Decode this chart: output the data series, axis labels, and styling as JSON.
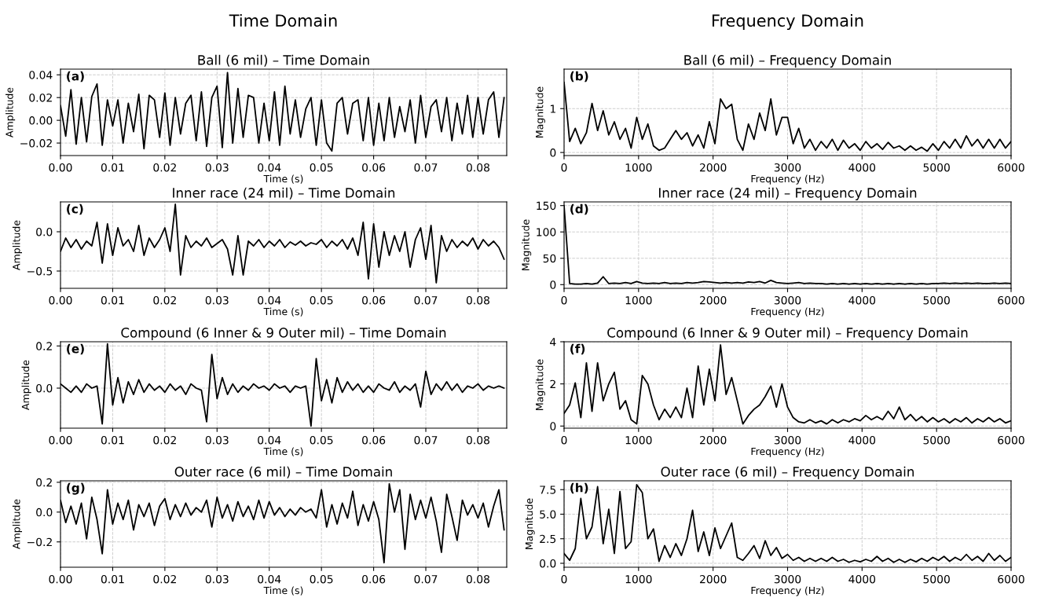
{
  "chart_data": [
    {
      "type": "line",
      "title": "Ball (6 mil) – Time Domain",
      "xlabel": "Time (s)",
      "ylabel": "Amplitude",
      "annotations": [
        "(a)",
        "Time Domain"
      ],
      "grid": true,
      "x": [
        0,
        0.001,
        0.002,
        0.003,
        0.004,
        0.005,
        0.006,
        0.007,
        0.008,
        0.009,
        0.01,
        0.011,
        0.012,
        0.013,
        0.014,
        0.015,
        0.016,
        0.017,
        0.018,
        0.019,
        0.02,
        0.021,
        0.022,
        0.023,
        0.024,
        0.025,
        0.026,
        0.027,
        0.028,
        0.029,
        0.03,
        0.031,
        0.032,
        0.033,
        0.034,
        0.035,
        0.036,
        0.037,
        0.038,
        0.039,
        0.04,
        0.041,
        0.042,
        0.043,
        0.044,
        0.045,
        0.046,
        0.047,
        0.048,
        0.049,
        0.05,
        0.051,
        0.052,
        0.053,
        0.054,
        0.055,
        0.056,
        0.057,
        0.058,
        0.059,
        0.06,
        0.061,
        0.062,
        0.063,
        0.064,
        0.065,
        0.066,
        0.067,
        0.068,
        0.069,
        0.07,
        0.071,
        0.072,
        0.073,
        0.074,
        0.075,
        0.076,
        0.077,
        0.078,
        0.079,
        0.08,
        0.081,
        0.082,
        0.083,
        0.084,
        0.085
      ],
      "series": [
        {
          "color": "#000000",
          "values": [
            0.013,
            -0.014,
            0.027,
            -0.021,
            0.02,
            -0.019,
            0.021,
            0.032,
            -0.022,
            0.018,
            -0.005,
            0.018,
            -0.02,
            0.015,
            -0.01,
            0.023,
            -0.025,
            0.022,
            0.018,
            -0.015,
            0.024,
            -0.022,
            0.02,
            -0.012,
            0.015,
            0.022,
            -0.018,
            0.025,
            -0.023,
            0.02,
            0.03,
            -0.024,
            0.042,
            -0.02,
            0.028,
            -0.015,
            0.022,
            0.02,
            -0.02,
            0.015,
            -0.018,
            0.025,
            -0.022,
            0.03,
            -0.012,
            0.018,
            -0.015,
            0.01,
            0.02,
            -0.022,
            0.018,
            -0.02,
            -0.027,
            0.015,
            0.02,
            -0.012,
            0.015,
            0.018,
            -0.018,
            0.02,
            -0.022,
            0.015,
            -0.018,
            0.02,
            -0.015,
            0.012,
            -0.01,
            0.018,
            -0.02,
            0.022,
            -0.015,
            0.012,
            0.018,
            -0.01,
            0.02,
            -0.018,
            0.015,
            -0.012,
            0.022,
            -0.015,
            0.02,
            -0.012,
            0.018,
            0.025,
            -0.015,
            0.02
          ]
        }
      ],
      "xlim": [
        0,
        0.0855
      ],
      "ylim": [
        -0.031,
        0.045
      ],
      "xticks": [
        {
          "value": 0,
          "label": "0.00"
        },
        {
          "value": 0.01,
          "label": "0.01"
        },
        {
          "value": 0.02,
          "label": "0.02"
        },
        {
          "value": 0.03,
          "label": "0.03"
        },
        {
          "value": 0.04,
          "label": "0.04"
        },
        {
          "value": 0.05,
          "label": "0.05"
        },
        {
          "value": 0.06,
          "label": "0.06"
        },
        {
          "value": 0.07,
          "label": "0.07"
        },
        {
          "value": 0.08,
          "label": "0.08"
        }
      ],
      "yticks": [
        {
          "value": -0.02,
          "label": "−0.02"
        },
        {
          "value": 0,
          "label": "0.00"
        },
        {
          "value": 0.02,
          "label": "0.02"
        },
        {
          "value": 0.04,
          "label": "0.04"
        }
      ]
    },
    {
      "type": "line",
      "title": "Ball (6 mil) – Frequency Domain",
      "xlabel": "Frequency (Hz)",
      "ylabel": "Magnitude",
      "annotations": [
        "(b)",
        "Frequency Domain"
      ],
      "grid": true,
      "x": [
        0,
        75,
        150,
        225,
        300,
        375,
        450,
        525,
        600,
        675,
        750,
        825,
        900,
        975,
        1050,
        1125,
        1200,
        1275,
        1350,
        1425,
        1500,
        1575,
        1650,
        1725,
        1800,
        1875,
        1950,
        2025,
        2100,
        2175,
        2250,
        2325,
        2400,
        2475,
        2550,
        2625,
        2700,
        2775,
        2850,
        2925,
        3000,
        3075,
        3150,
        3225,
        3300,
        3375,
        3450,
        3525,
        3600,
        3675,
        3750,
        3825,
        3900,
        3975,
        4050,
        4125,
        4200,
        4275,
        4350,
        4425,
        4500,
        4575,
        4650,
        4725,
        4800,
        4875,
        4950,
        5025,
        5100,
        5175,
        5250,
        5325,
        5400,
        5475,
        5550,
        5625,
        5700,
        5775,
        5850,
        5925,
        6000
      ],
      "series": [
        {
          "color": "#000000",
          "values": [
            1.6,
            0.25,
            0.55,
            0.2,
            0.45,
            1.12,
            0.5,
            0.95,
            0.4,
            0.7,
            0.3,
            0.55,
            0.1,
            0.8,
            0.3,
            0.65,
            0.15,
            0.05,
            0.1,
            0.3,
            0.5,
            0.3,
            0.45,
            0.15,
            0.4,
            0.1,
            0.7,
            0.2,
            1.22,
            1.0,
            1.1,
            0.3,
            0.05,
            0.65,
            0.3,
            0.9,
            0.5,
            1.22,
            0.4,
            0.8,
            0.8,
            0.2,
            0.55,
            0.1,
            0.3,
            0.05,
            0.25,
            0.1,
            0.3,
            0.05,
            0.28,
            0.1,
            0.2,
            0.05,
            0.25,
            0.1,
            0.2,
            0.07,
            0.23,
            0.1,
            0.15,
            0.05,
            0.15,
            0.05,
            0.12,
            0.03,
            0.2,
            0.05,
            0.25,
            0.1,
            0.3,
            0.1,
            0.38,
            0.15,
            0.3,
            0.1,
            0.3,
            0.1,
            0.3,
            0.1,
            0.25
          ]
        }
      ],
      "xlim": [
        0,
        6000
      ],
      "ylim": [
        -0.07,
        1.9
      ],
      "xticks": [
        0,
        1000,
        2000,
        3000,
        4000,
        5000,
        6000
      ],
      "yticks": [
        0,
        1
      ]
    },
    {
      "type": "line",
      "title": "Inner race (24 mil) – Time Domain",
      "xlabel": "Time (s)",
      "ylabel": "Amplitude",
      "annotations": [
        "(c)"
      ],
      "grid": true,
      "x": [
        0,
        0.001,
        0.002,
        0.003,
        0.004,
        0.005,
        0.006,
        0.007,
        0.008,
        0.009,
        0.01,
        0.011,
        0.012,
        0.013,
        0.014,
        0.015,
        0.016,
        0.017,
        0.018,
        0.019,
        0.02,
        0.021,
        0.022,
        0.023,
        0.024,
        0.025,
        0.026,
        0.027,
        0.028,
        0.029,
        0.03,
        0.031,
        0.032,
        0.033,
        0.034,
        0.035,
        0.036,
        0.037,
        0.038,
        0.039,
        0.04,
        0.041,
        0.042,
        0.043,
        0.044,
        0.045,
        0.046,
        0.047,
        0.048,
        0.049,
        0.05,
        0.051,
        0.052,
        0.053,
        0.054,
        0.055,
        0.056,
        0.057,
        0.058,
        0.059,
        0.06,
        0.061,
        0.062,
        0.063,
        0.064,
        0.065,
        0.066,
        0.067,
        0.068,
        0.069,
        0.07,
        0.071,
        0.072,
        0.073,
        0.074,
        0.075,
        0.076,
        0.077,
        0.078,
        0.079,
        0.08,
        0.081,
        0.082,
        0.083,
        0.084,
        0.085
      ],
      "series": [
        {
          "color": "#000000",
          "values": [
            -0.25,
            -0.08,
            -0.2,
            -0.1,
            -0.22,
            -0.12,
            -0.18,
            0.12,
            -0.4,
            0.1,
            -0.3,
            0.05,
            -0.18,
            -0.1,
            -0.25,
            0.08,
            -0.3,
            -0.08,
            -0.2,
            -0.1,
            0.05,
            -0.25,
            0.35,
            -0.55,
            -0.05,
            -0.2,
            -0.12,
            -0.18,
            -0.08,
            -0.2,
            -0.15,
            -0.1,
            -0.22,
            -0.55,
            -0.05,
            -0.55,
            -0.12,
            -0.18,
            -0.1,
            -0.2,
            -0.12,
            -0.18,
            -0.1,
            -0.2,
            -0.13,
            -0.17,
            -0.12,
            -0.18,
            -0.14,
            -0.16,
            -0.1,
            -0.2,
            -0.12,
            -0.18,
            -0.1,
            -0.22,
            -0.08,
            -0.3,
            0.12,
            -0.6,
            0.1,
            -0.45,
            0.0,
            -0.3,
            -0.05,
            -0.25,
            0.0,
            -0.45,
            -0.1,
            0.05,
            -0.35,
            0.08,
            -0.65,
            -0.05,
            -0.25,
            -0.1,
            -0.2,
            -0.12,
            -0.18,
            -0.08,
            -0.22,
            -0.1,
            -0.18,
            -0.12,
            -0.2,
            -0.35
          ]
        }
      ],
      "xlim": [
        0,
        0.0855
      ],
      "ylim": [
        -0.72,
        0.38
      ],
      "xticks": [
        {
          "value": 0,
          "label": "0.00"
        },
        {
          "value": 0.01,
          "label": "0.01"
        },
        {
          "value": 0.02,
          "label": "0.02"
        },
        {
          "value": 0.03,
          "label": "0.03"
        },
        {
          "value": 0.04,
          "label": "0.04"
        },
        {
          "value": 0.05,
          "label": "0.05"
        },
        {
          "value": 0.06,
          "label": "0.06"
        },
        {
          "value": 0.07,
          "label": "0.07"
        },
        {
          "value": 0.08,
          "label": "0.08"
        }
      ],
      "yticks": [
        {
          "value": -0.5,
          "label": "−0.5"
        },
        {
          "value": 0,
          "label": "0.0"
        }
      ]
    },
    {
      "type": "line",
      "title": "Inner race (24 mil) – Frequency Domain",
      "xlabel": "Frequency (Hz)",
      "ylabel": "Magnitude",
      "annotations": [
        "(d)"
      ],
      "grid": true,
      "x": [
        0,
        75,
        150,
        225,
        300,
        375,
        450,
        525,
        600,
        675,
        750,
        825,
        900,
        975,
        1050,
        1125,
        1200,
        1275,
        1350,
        1425,
        1500,
        1575,
        1650,
        1725,
        1800,
        1875,
        1950,
        2025,
        2100,
        2175,
        2250,
        2325,
        2400,
        2475,
        2550,
        2625,
        2700,
        2775,
        2850,
        2925,
        3000,
        3075,
        3150,
        3225,
        3300,
        3375,
        3450,
        3525,
        3600,
        3675,
        3750,
        3825,
        3900,
        3975,
        4050,
        4125,
        4200,
        4275,
        4350,
        4425,
        4500,
        4575,
        4650,
        4725,
        4800,
        4875,
        4950,
        5025,
        5100,
        5175,
        5250,
        5325,
        5400,
        5475,
        5550,
        5625,
        5700,
        5775,
        5850,
        5925,
        6000
      ],
      "series": [
        {
          "color": "#000000",
          "values": [
            150,
            2,
            1,
            1,
            2,
            1,
            3,
            15,
            2,
            3,
            2,
            4,
            2,
            6,
            3,
            2,
            3,
            2,
            4,
            2,
            3,
            2,
            4,
            3,
            4,
            6,
            5,
            4,
            3,
            4,
            3,
            4,
            3,
            5,
            4,
            6,
            3,
            8,
            4,
            3,
            2,
            3,
            4,
            2,
            3,
            2,
            2,
            1,
            2,
            1,
            2,
            1,
            2,
            1,
            2,
            1,
            2,
            1,
            2,
            1,
            2,
            1,
            2,
            1,
            2,
            1,
            2,
            2,
            3,
            2,
            3,
            2,
            3,
            2,
            3,
            2,
            2,
            3,
            2,
            3,
            2
          ]
        }
      ],
      "xlim": [
        0,
        6000
      ],
      "ylim": [
        -7,
        157
      ],
      "xticks": [
        0,
        1000,
        2000,
        3000,
        4000,
        5000,
        6000
      ],
      "yticks": [
        0,
        50,
        100,
        150
      ]
    },
    {
      "type": "line",
      "title": "Compound (6 Inner & 9 Outer mil) – Time Domain",
      "xlabel": "Time (s)",
      "ylabel": "Amplitude",
      "annotations": [
        "(e)"
      ],
      "grid": true,
      "x": [
        0,
        0.001,
        0.002,
        0.003,
        0.004,
        0.005,
        0.006,
        0.007,
        0.008,
        0.009,
        0.01,
        0.011,
        0.012,
        0.013,
        0.014,
        0.015,
        0.016,
        0.017,
        0.018,
        0.019,
        0.02,
        0.021,
        0.022,
        0.023,
        0.024,
        0.025,
        0.026,
        0.027,
        0.028,
        0.029,
        0.03,
        0.031,
        0.032,
        0.033,
        0.034,
        0.035,
        0.036,
        0.037,
        0.038,
        0.039,
        0.04,
        0.041,
        0.042,
        0.043,
        0.044,
        0.045,
        0.046,
        0.047,
        0.048,
        0.049,
        0.05,
        0.051,
        0.052,
        0.053,
        0.054,
        0.055,
        0.056,
        0.057,
        0.058,
        0.059,
        0.06,
        0.061,
        0.062,
        0.063,
        0.064,
        0.065,
        0.066,
        0.067,
        0.068,
        0.069,
        0.07,
        0.071,
        0.072,
        0.073,
        0.074,
        0.075,
        0.076,
        0.077,
        0.078,
        0.079,
        0.08,
        0.081,
        0.082,
        0.083,
        0.084,
        0.085
      ],
      "series": [
        {
          "color": "#000000",
          "values": [
            0.02,
            0.0,
            -0.02,
            0.01,
            -0.02,
            0.02,
            0.0,
            0.01,
            -0.17,
            0.21,
            -0.08,
            0.05,
            -0.07,
            0.03,
            -0.03,
            0.04,
            -0.02,
            0.02,
            -0.01,
            0.01,
            -0.02,
            0.02,
            -0.01,
            0.01,
            -0.03,
            0.02,
            0.0,
            -0.01,
            -0.16,
            0.16,
            -0.05,
            0.05,
            -0.03,
            0.02,
            -0.02,
            0.01,
            -0.01,
            0.02,
            0.0,
            0.01,
            -0.01,
            0.02,
            0.0,
            0.01,
            -0.02,
            0.01,
            0.0,
            0.01,
            -0.18,
            0.14,
            -0.06,
            0.04,
            -0.07,
            0.05,
            -0.02,
            0.03,
            -0.01,
            0.02,
            -0.02,
            0.01,
            -0.02,
            0.02,
            0.0,
            -0.01,
            0.03,
            -0.02,
            0.01,
            -0.01,
            0.02,
            -0.09,
            0.08,
            -0.03,
            0.02,
            -0.01,
            0.03,
            -0.01,
            0.02,
            -0.02,
            0.01,
            0.0,
            0.02,
            -0.01,
            0.01,
            0.0,
            0.01,
            0.0
          ]
        }
      ],
      "xlim": [
        0,
        0.0855
      ],
      "ylim": [
        -0.19,
        0.22
      ],
      "xticks": [
        {
          "value": 0,
          "label": "0.00"
        },
        {
          "value": 0.01,
          "label": "0.01"
        },
        {
          "value": 0.02,
          "label": "0.02"
        },
        {
          "value": 0.03,
          "label": "0.03"
        },
        {
          "value": 0.04,
          "label": "0.04"
        },
        {
          "value": 0.05,
          "label": "0.05"
        },
        {
          "value": 0.06,
          "label": "0.06"
        },
        {
          "value": 0.07,
          "label": "0.07"
        },
        {
          "value": 0.08,
          "label": "0.08"
        }
      ],
      "yticks": [
        {
          "value": 0,
          "label": "0.0"
        },
        {
          "value": 0.2,
          "label": "0.2"
        }
      ]
    },
    {
      "type": "line",
      "title": "Compound (6 Inner & 9 Outer mil) – Frequency Domain",
      "xlabel": "Frequency (Hz)",
      "ylabel": "Magnitude",
      "annotations": [
        "(f)"
      ],
      "grid": true,
      "x": [
        0,
        75,
        150,
        225,
        300,
        375,
        450,
        525,
        600,
        675,
        750,
        825,
        900,
        975,
        1050,
        1125,
        1200,
        1275,
        1350,
        1425,
        1500,
        1575,
        1650,
        1725,
        1800,
        1875,
        1950,
        2025,
        2100,
        2175,
        2250,
        2325,
        2400,
        2475,
        2550,
        2625,
        2700,
        2775,
        2850,
        2925,
        3000,
        3075,
        3150,
        3225,
        3300,
        3375,
        3450,
        3525,
        3600,
        3675,
        3750,
        3825,
        3900,
        3975,
        4050,
        4125,
        4200,
        4275,
        4350,
        4425,
        4500,
        4575,
        4650,
        4725,
        4800,
        4875,
        4950,
        5025,
        5100,
        5175,
        5250,
        5325,
        5400,
        5475,
        5550,
        5625,
        5700,
        5775,
        5850,
        5925,
        6000
      ],
      "series": [
        {
          "color": "#000000",
          "values": [
            0.6,
            1.0,
            2.05,
            0.4,
            3.0,
            0.7,
            3.0,
            1.2,
            2.0,
            2.55,
            0.8,
            1.2,
            0.3,
            0.1,
            2.4,
            2.0,
            1.0,
            0.3,
            0.8,
            0.4,
            0.9,
            0.4,
            1.8,
            0.4,
            2.85,
            1.0,
            2.7,
            1.2,
            3.85,
            1.5,
            2.3,
            1.2,
            0.1,
            0.5,
            0.8,
            1.0,
            1.4,
            1.9,
            0.9,
            2.0,
            0.9,
            0.4,
            0.2,
            0.15,
            0.3,
            0.15,
            0.25,
            0.1,
            0.3,
            0.15,
            0.3,
            0.2,
            0.35,
            0.25,
            0.5,
            0.3,
            0.45,
            0.3,
            0.7,
            0.35,
            0.9,
            0.3,
            0.55,
            0.25,
            0.45,
            0.2,
            0.4,
            0.2,
            0.35,
            0.15,
            0.35,
            0.2,
            0.4,
            0.15,
            0.35,
            0.2,
            0.4,
            0.2,
            0.35,
            0.15,
            0.25
          ]
        }
      ],
      "xlim": [
        0,
        6000
      ],
      "ylim": [
        -0.1,
        4.0
      ],
      "xticks": [
        0,
        1000,
        2000,
        3000,
        4000,
        5000,
        6000
      ],
      "yticks": [
        0,
        2,
        4
      ]
    },
    {
      "type": "line",
      "title": "Outer race (6 mil) – Time Domain",
      "xlabel": "Time (s)",
      "ylabel": "Amplitude",
      "annotations": [
        "(g)"
      ],
      "grid": true,
      "x": [
        0,
        0.001,
        0.002,
        0.003,
        0.004,
        0.005,
        0.006,
        0.007,
        0.008,
        0.009,
        0.01,
        0.011,
        0.012,
        0.013,
        0.014,
        0.015,
        0.016,
        0.017,
        0.018,
        0.019,
        0.02,
        0.021,
        0.022,
        0.023,
        0.024,
        0.025,
        0.026,
        0.027,
        0.028,
        0.029,
        0.03,
        0.031,
        0.032,
        0.033,
        0.034,
        0.035,
        0.036,
        0.037,
        0.038,
        0.039,
        0.04,
        0.041,
        0.042,
        0.043,
        0.044,
        0.045,
        0.046,
        0.047,
        0.048,
        0.049,
        0.05,
        0.051,
        0.052,
        0.053,
        0.054,
        0.055,
        0.056,
        0.057,
        0.058,
        0.059,
        0.06,
        0.061,
        0.062,
        0.063,
        0.064,
        0.065,
        0.066,
        0.067,
        0.068,
        0.069,
        0.07,
        0.071,
        0.072,
        0.073,
        0.074,
        0.075,
        0.076,
        0.077,
        0.078,
        0.079,
        0.08,
        0.081,
        0.082,
        0.083,
        0.084,
        0.085
      ],
      "series": [
        {
          "color": "#000000",
          "values": [
            0.08,
            -0.07,
            0.04,
            -0.08,
            0.06,
            -0.18,
            0.1,
            -0.05,
            -0.28,
            0.15,
            -0.08,
            0.06,
            -0.05,
            0.08,
            -0.12,
            0.05,
            -0.03,
            0.06,
            -0.09,
            0.04,
            0.09,
            -0.05,
            0.05,
            -0.03,
            0.06,
            -0.02,
            0.03,
            0.0,
            0.08,
            -0.1,
            0.1,
            -0.04,
            0.05,
            -0.06,
            0.07,
            -0.03,
            0.04,
            -0.05,
            0.08,
            -0.04,
            0.07,
            -0.02,
            0.03,
            -0.03,
            0.02,
            -0.02,
            0.03,
            0.0,
            0.02,
            -0.04,
            0.15,
            -0.1,
            0.05,
            -0.08,
            0.06,
            -0.04,
            0.14,
            -0.09,
            0.05,
            -0.06,
            0.07,
            -0.05,
            -0.34,
            0.19,
            0.0,
            0.15,
            -0.25,
            0.12,
            -0.05,
            0.08,
            -0.04,
            0.1,
            -0.06,
            -0.27,
            0.12,
            -0.03,
            -0.19,
            0.08,
            -0.02,
            0.05,
            -0.04,
            0.06,
            -0.1,
            0.04,
            0.15,
            -0.12
          ]
        }
      ],
      "xlim": [
        0,
        0.0855
      ],
      "ylim": [
        -0.37,
        0.21
      ],
      "xticks": [
        {
          "value": 0,
          "label": "0.00"
        },
        {
          "value": 0.01,
          "label": "0.01"
        },
        {
          "value": 0.02,
          "label": "0.02"
        },
        {
          "value": 0.03,
          "label": "0.03"
        },
        {
          "value": 0.04,
          "label": "0.04"
        },
        {
          "value": 0.05,
          "label": "0.05"
        },
        {
          "value": 0.06,
          "label": "0.06"
        },
        {
          "value": 0.07,
          "label": "0.07"
        },
        {
          "value": 0.08,
          "label": "0.08"
        }
      ],
      "yticks": [
        {
          "value": -0.2,
          "label": "−0.2"
        },
        {
          "value": 0,
          "label": "0.0"
        },
        {
          "value": 0.2,
          "label": "0.2"
        }
      ]
    },
    {
      "type": "line",
      "title": "Outer race (6 mil) – Frequency Domain",
      "xlabel": "Frequency (Hz)",
      "ylabel": "Magnitude",
      "annotations": [
        "(h)"
      ],
      "grid": true,
      "x": [
        0,
        75,
        150,
        225,
        300,
        375,
        450,
        525,
        600,
        675,
        750,
        825,
        900,
        975,
        1050,
        1125,
        1200,
        1275,
        1350,
        1425,
        1500,
        1575,
        1650,
        1725,
        1800,
        1875,
        1950,
        2025,
        2100,
        2175,
        2250,
        2325,
        2400,
        2475,
        2550,
        2625,
        2700,
        2775,
        2850,
        2925,
        3000,
        3075,
        3150,
        3225,
        3300,
        3375,
        3450,
        3525,
        3600,
        3675,
        3750,
        3825,
        3900,
        3975,
        4050,
        4125,
        4200,
        4275,
        4350,
        4425,
        4500,
        4575,
        4650,
        4725,
        4800,
        4875,
        4950,
        5025,
        5100,
        5175,
        5250,
        5325,
        5400,
        5475,
        5550,
        5625,
        5700,
        5775,
        5850,
        5925,
        6000
      ],
      "series": [
        {
          "color": "#000000",
          "values": [
            1.0,
            0.3,
            1.5,
            6.6,
            2.5,
            3.7,
            7.8,
            2.0,
            5.5,
            1.0,
            7.3,
            1.5,
            2.2,
            8.0,
            7.2,
            2.5,
            3.5,
            0.2,
            1.8,
            0.6,
            2.0,
            0.8,
            2.5,
            5.4,
            1.2,
            3.2,
            0.8,
            3.6,
            1.5,
            2.8,
            4.1,
            0.6,
            0.3,
            1.0,
            1.8,
            0.5,
            2.3,
            0.8,
            1.6,
            0.5,
            0.9,
            0.3,
            0.6,
            0.2,
            0.5,
            0.2,
            0.5,
            0.2,
            0.6,
            0.2,
            0.4,
            0.1,
            0.3,
            0.15,
            0.4,
            0.2,
            0.7,
            0.2,
            0.5,
            0.1,
            0.4,
            0.1,
            0.4,
            0.15,
            0.5,
            0.2,
            0.6,
            0.3,
            0.7,
            0.2,
            0.6,
            0.3,
            0.9,
            0.3,
            0.7,
            0.2,
            1.0,
            0.3,
            0.8,
            0.2,
            0.6
          ]
        }
      ],
      "xlim": [
        0,
        6000
      ],
      "ylim": [
        -0.4,
        8.4
      ],
      "xticks": [
        0,
        1000,
        2000,
        3000,
        4000,
        5000,
        6000
      ],
      "yticks": [
        {
          "value": 0,
          "label": "0.0"
        },
        {
          "value": 2.5,
          "label": "2.5"
        },
        {
          "value": 5,
          "label": "5.0"
        },
        {
          "value": 7.5,
          "label": "7.5"
        }
      ]
    }
  ]
}
